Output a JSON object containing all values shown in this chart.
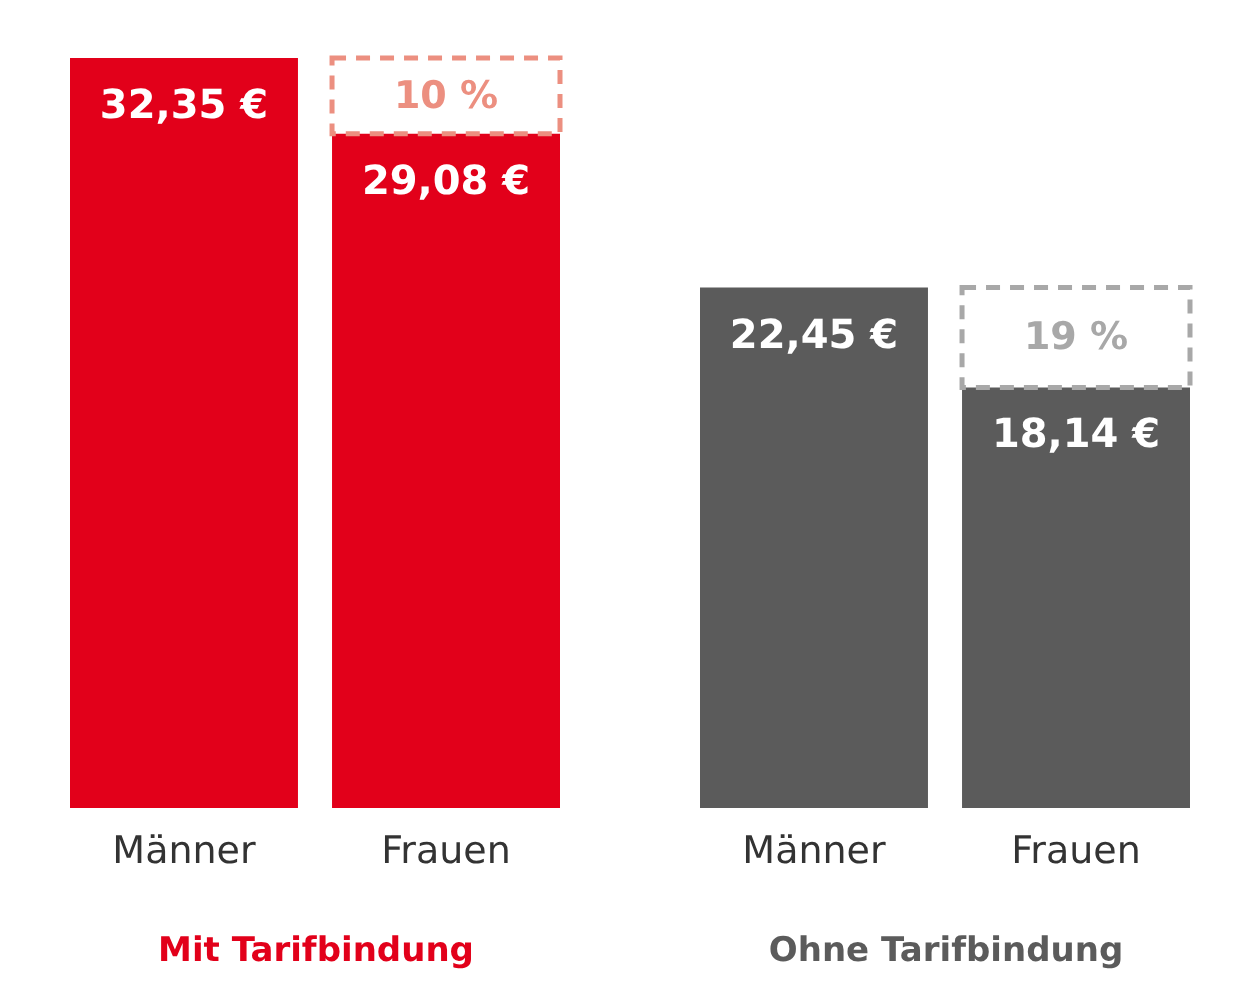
{
  "chart_data": [
    {
      "type": "bar",
      "stacked": true,
      "xlabel": "Mit Tarifbindung",
      "tick_labels": "x",
      "categories": [
        "Männer",
        "Frauen"
      ],
      "series": [
        {
          "color": "#e2001a",
          "values": [
            32.35,
            29.08
          ],
          "value_labels": [
            "32,35 €",
            "29,08 €"
          ]
        },
        {
          "color": "#ec8f80",
          "line_style": "dashed",
          "values": [
            null,
            3.27
          ]
        }
      ],
      "annotations": [
        "10 %"
      ]
    },
    {
      "type": "bar",
      "stacked": true,
      "xlabel": "Ohne Tarifbindung",
      "tick_labels": "x",
      "categories": [
        "Männer",
        "Frauen"
      ],
      "series": [
        {
          "color": "#5b5b5b",
          "values": [
            22.45,
            18.14
          ],
          "value_labels": [
            "22,45 €",
            "18,14 €"
          ]
        },
        {
          "color": "#a8a8a8",
          "line_style": "dashed",
          "values": [
            null,
            4.31
          ]
        }
      ],
      "annotations": [
        "19 %"
      ]
    }
  ]
}
